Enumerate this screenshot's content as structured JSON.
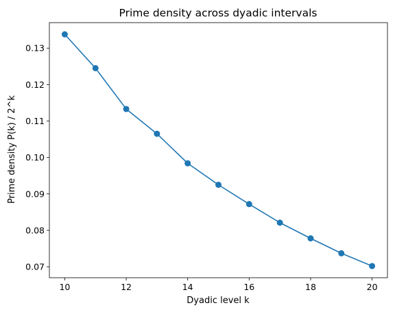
{
  "chart_data": {
    "type": "line",
    "title": "Prime density across dyadic intervals",
    "xlabel": "Dyadic level k",
    "ylabel": "Prime density P(k) / 2^k",
    "x": [
      10,
      11,
      12,
      13,
      14,
      15,
      16,
      17,
      18,
      19,
      20
    ],
    "series": [
      {
        "values": [
          0.1338,
          0.1245,
          0.1133,
          0.1065,
          0.0984,
          0.0925,
          0.0872,
          0.0821,
          0.0778,
          0.0737,
          0.0702
        ],
        "color": "#1f77b4",
        "marker": "circle"
      }
    ],
    "xlim": [
      9.5,
      20.5
    ],
    "ylim": [
      0.067,
      0.137
    ],
    "xticks": [
      10,
      12,
      14,
      16,
      18,
      20
    ],
    "yticks": [
      0.07,
      0.08,
      0.09,
      0.1,
      0.11,
      0.12,
      0.13
    ],
    "ytick_labels": [
      "0.07",
      "0.08",
      "0.09",
      "0.10",
      "0.11",
      "0.12",
      "0.13"
    ],
    "grid": false,
    "legend": "none"
  }
}
